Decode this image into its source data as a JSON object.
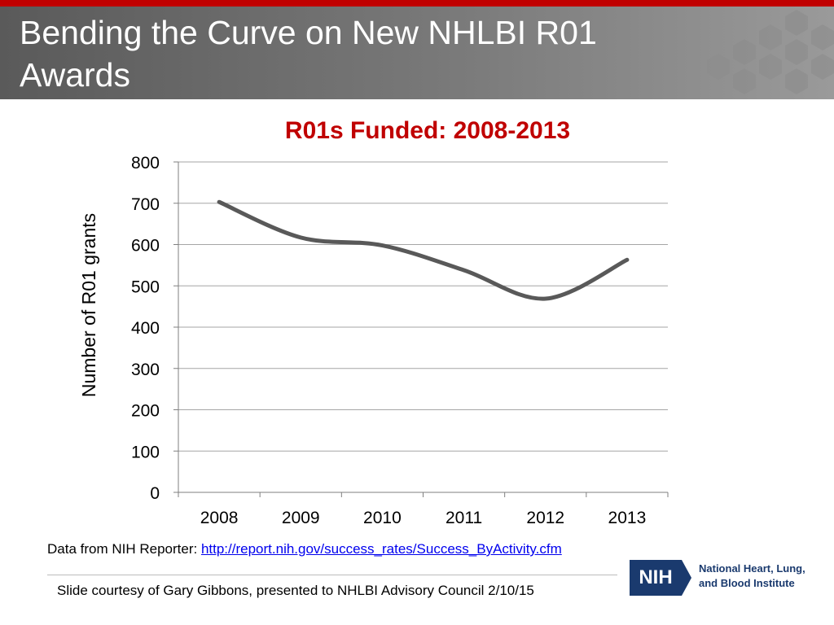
{
  "slide": {
    "title": "Bending the Curve on New NHLBI R01 Awards"
  },
  "chart_data": {
    "type": "line",
    "title": "R01s Funded: 2008-2013",
    "xlabel": "",
    "ylabel": "Number of R01 grants",
    "categories": [
      "2008",
      "2009",
      "2010",
      "2011",
      "2012",
      "2013"
    ],
    "series": [
      {
        "values": [
          703,
          617,
          598,
          538,
          469,
          563
        ],
        "color": "#595959"
      }
    ],
    "ylim": [
      0,
      800
    ],
    "yticks": [
      0,
      100,
      200,
      300,
      400,
      500,
      600,
      700,
      800
    ],
    "grid": true,
    "legend": "none",
    "smooth": true
  },
  "source": {
    "prefix": "Data from NIH Reporter: ",
    "link": "http://report.nih.gov/success_rates/Success_ByActivity.cfm"
  },
  "footer": {
    "text": "Slide courtesy of Gary Gibbons, presented to NHLBI Advisory Council 2/10/15"
  },
  "logo": {
    "abbr": "NIH",
    "line1": "National Heart, Lung,",
    "line2": "and Blood Institute"
  },
  "colors": {
    "accent_red": "#c00000",
    "nih_blue": "#1a3a6e",
    "line_gray": "#595959",
    "grid_gray": "#a6a6a6"
  }
}
